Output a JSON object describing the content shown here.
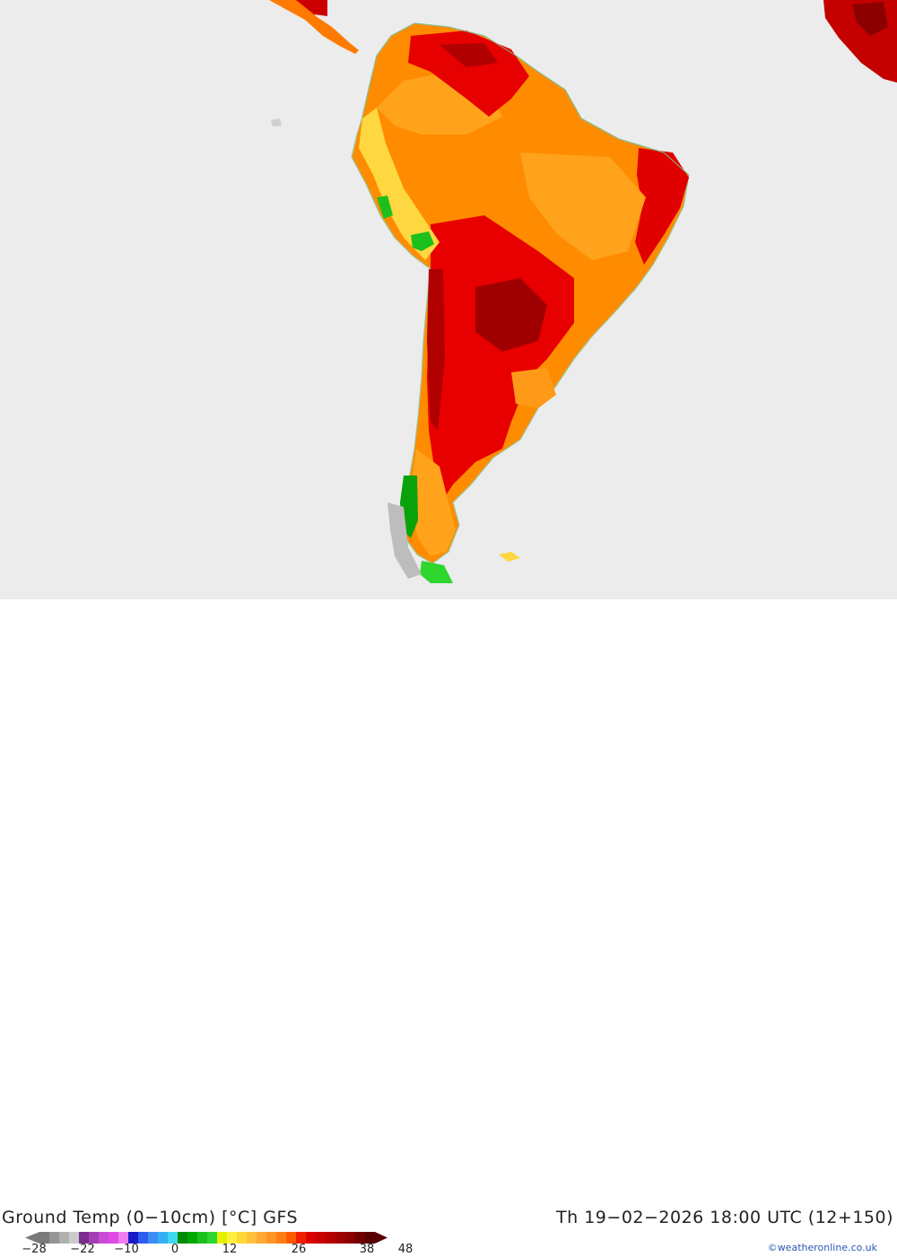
{
  "title": "Ground Temp (0−10cm) [°C] GFS",
  "validity": "Th 19−02−2026 18:00 UTC (12+150)",
  "credit": "©weatheronline.co.uk",
  "legend": {
    "ticks": [
      "−28",
      "−22",
      "−10",
      "0",
      "12",
      "26",
      "38",
      "48"
    ],
    "colors": [
      "#7a7a7a",
      "#959595",
      "#b0b0b0",
      "#cbcbcb",
      "#7b2d8e",
      "#a23fb3",
      "#c94ad6",
      "#e04be8",
      "#f07cf2",
      "#1919c8",
      "#2d5cf0",
      "#3c8cf5",
      "#36b0f5",
      "#3fd9f0",
      "#008c00",
      "#00a800",
      "#1cbf1c",
      "#2ed62e",
      "#e5f000",
      "#fff040",
      "#ffd83a",
      "#ffc13a",
      "#ffaa33",
      "#ff9428",
      "#ff7d14",
      "#ff5a00",
      "#f01e00",
      "#dc0000",
      "#c80000",
      "#b40000",
      "#a00000",
      "#8c0000",
      "#700000",
      "#580000"
    ],
    "ocean_color": "#ececec"
  }
}
